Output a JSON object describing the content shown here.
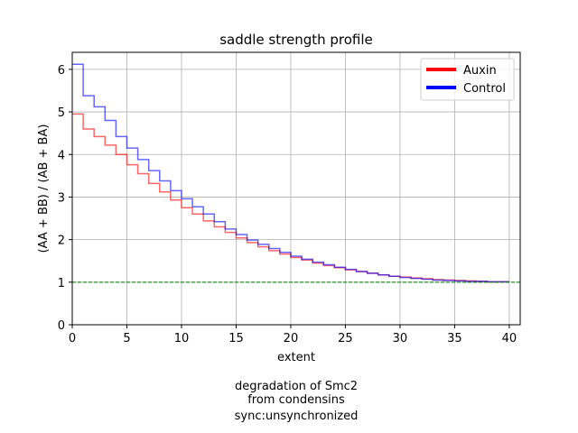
{
  "chart_data": {
    "type": "line",
    "title": "saddle strength profile",
    "xlabel": "extent",
    "ylabel": "(AA + BB) / (AB + BA)",
    "xlim": [
      0,
      41
    ],
    "ylim": [
      0,
      6.4
    ],
    "xticks": [
      0,
      5,
      10,
      15,
      20,
      25,
      30,
      35,
      40
    ],
    "yticks": [
      0,
      1,
      2,
      3,
      4,
      5,
      6
    ],
    "grid": true,
    "legend_position": "top-right",
    "step": true,
    "reference_line": {
      "y": 1,
      "color": "#008000",
      "style": "dashed"
    },
    "series": [
      {
        "name": "Auxin",
        "color": "#ff0000",
        "x": [
          0,
          1,
          2,
          3,
          4,
          5,
          6,
          7,
          8,
          9,
          10,
          11,
          12,
          13,
          14,
          15,
          16,
          17,
          18,
          19,
          20,
          21,
          22,
          23,
          24,
          25,
          26,
          27,
          28,
          29,
          30,
          31,
          32,
          33,
          34,
          35,
          36,
          37,
          38,
          39
        ],
        "values": [
          4.95,
          4.6,
          4.42,
          4.22,
          4.0,
          3.76,
          3.55,
          3.32,
          3.12,
          2.93,
          2.75,
          2.6,
          2.44,
          2.3,
          2.17,
          2.04,
          1.93,
          1.83,
          1.74,
          1.66,
          1.58,
          1.52,
          1.45,
          1.39,
          1.34,
          1.29,
          1.25,
          1.21,
          1.17,
          1.14,
          1.12,
          1.1,
          1.08,
          1.06,
          1.05,
          1.04,
          1.03,
          1.02,
          1.01,
          1.01
        ]
      },
      {
        "name": "Control",
        "color": "#0000ff",
        "x": [
          0,
          1,
          2,
          3,
          4,
          5,
          6,
          7,
          8,
          9,
          10,
          11,
          12,
          13,
          14,
          15,
          16,
          17,
          18,
          19,
          20,
          21,
          22,
          23,
          24,
          25,
          26,
          27,
          28,
          29,
          30,
          31,
          32,
          33,
          34,
          35,
          36,
          37,
          38,
          39
        ],
        "values": [
          6.12,
          5.38,
          5.12,
          4.8,
          4.42,
          4.15,
          3.88,
          3.62,
          3.38,
          3.15,
          2.96,
          2.77,
          2.6,
          2.42,
          2.25,
          2.12,
          1.99,
          1.89,
          1.79,
          1.7,
          1.61,
          1.54,
          1.47,
          1.41,
          1.35,
          1.3,
          1.25,
          1.21,
          1.17,
          1.14,
          1.11,
          1.09,
          1.07,
          1.05,
          1.04,
          1.03,
          1.02,
          1.02,
          1.01,
          1.01
        ]
      }
    ]
  },
  "caption": {
    "line1": "degradation of Smc2",
    "line2": "from condensins",
    "line3": "sync:unsynchronized"
  }
}
